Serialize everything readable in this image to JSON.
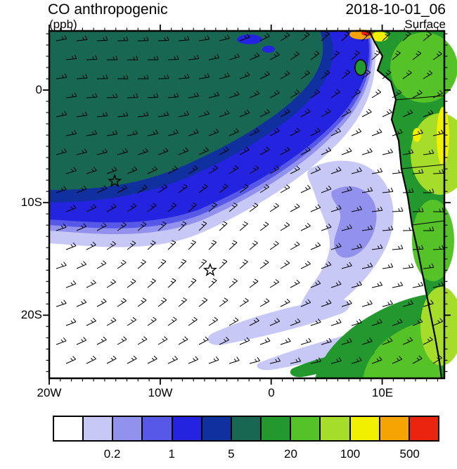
{
  "header": {
    "title": "CO anthropogenic",
    "datetime": "2018-10-01_06",
    "units": "(ppb)",
    "level": "Surface"
  },
  "axes": {
    "x_labels": [
      "20W",
      "10W",
      "0",
      "10E"
    ],
    "y_labels": [
      "0",
      "10S",
      "20S"
    ]
  },
  "colorbar": {
    "colors": [
      "#FFFFFF",
      "#C8C8F6",
      "#9292EE",
      "#5858E8",
      "#2424E0",
      "#1030A0",
      "#176752",
      "#22982E",
      "#55C228",
      "#A6DC2A",
      "#F0F000",
      "#F5A402",
      "#EB2410"
    ],
    "levels_ppb": [
      0.1,
      0.2,
      0.5,
      1,
      2,
      5,
      10,
      20,
      50,
      100,
      200,
      500
    ],
    "tick_labels": [
      "0.2",
      "1",
      "5",
      "20",
      "100",
      "500"
    ],
    "tick_positions": [
      2,
      4,
      6,
      8,
      10,
      12
    ]
  },
  "chart_data": {
    "type": "heatmap",
    "title": "CO anthropogenic",
    "units": "ppb",
    "valid_time": "2018-10-01_06",
    "level": "Surface",
    "extent": {
      "lon": [
        -20,
        15.6
      ],
      "lat": [
        -25.6,
        5.25
      ]
    },
    "x_tick_labels": [
      "20W",
      "10W",
      "0",
      "10E"
    ],
    "y_tick_labels": [
      "0",
      "10S",
      "20S"
    ],
    "contour_levels_ppb": [
      0.1,
      0.2,
      0.5,
      1,
      2,
      5,
      10,
      20,
      50,
      100,
      200,
      500
    ],
    "palette": [
      "#FFFFFF",
      "#C8C8F6",
      "#9292EE",
      "#5858E8",
      "#2424E0",
      "#1030A0",
      "#176752",
      "#22982E",
      "#55C228",
      "#A6DC2A",
      "#F0F000",
      "#F5A402",
      "#EB2410"
    ],
    "overlay": "surface wind barbs",
    "markers": [
      {
        "symbol": "star",
        "lon": -14.1,
        "lat": -8.1
      },
      {
        "symbol": "star",
        "lon": -5.5,
        "lat": -16.0
      }
    ],
    "features": [
      {
        "region": "West/Central African land east of coastline",
        "value_ppb": "20-500+",
        "rendered": "green/yellow-green/yellow"
      },
      {
        "region": "Gulf of Guinea coastal hotspot at northern edge (~7E)",
        "value_ppb": ">500",
        "rendered": "orange/red spot"
      },
      {
        "region": "NE tropical Atlantic plume (north of ~8S, west of coast)",
        "value_ppb": "1-10",
        "rendered": "blue band with dark teal core (NW)"
      },
      {
        "region": "South-central subtropical Atlantic",
        "value_ppb": "<0.1",
        "rendered": "white (clean air)"
      },
      {
        "region": "Offshore arcs near Angola coast (~8-18S)",
        "value_ppb": "0.1-0.5",
        "rendered": "lavender/periwinkle comma-shaped plume"
      },
      {
        "region": "SE corner oceanic outflow streaks",
        "value_ppb": "5-50",
        "rendered": "green wedges"
      }
    ]
  }
}
